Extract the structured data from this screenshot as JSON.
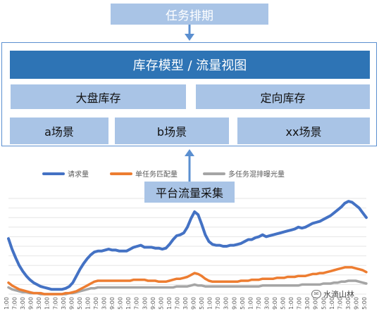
{
  "diagram": {
    "top_title": "任务排期",
    "model_title": "库存模型 / 流量视图",
    "pools": [
      "大盘库存",
      "定向库存"
    ],
    "scenes": [
      "a场景",
      "b场景",
      "xx场景"
    ],
    "collect_label": "平台流量采集"
  },
  "chart_data": {
    "type": "line",
    "title": "",
    "xlabel": "",
    "ylabel": "",
    "x": [
      0,
      1,
      2,
      3,
      4,
      5,
      6,
      7,
      8,
      9,
      10,
      11,
      12,
      13,
      14,
      15,
      16,
      17,
      18,
      19,
      20,
      21,
      22,
      23,
      24,
      25,
      26,
      27,
      28,
      29,
      30,
      31,
      32,
      33,
      34,
      35,
      36,
      37,
      38,
      39,
      40,
      41,
      42,
      43,
      44,
      45,
      46,
      47,
      48,
      49,
      50,
      51,
      52,
      53,
      54,
      55,
      56,
      57,
      58,
      59,
      60,
      61,
      62,
      63,
      64,
      65,
      66,
      67,
      68,
      69,
      70,
      71,
      72,
      73,
      74,
      75,
      76,
      77,
      78,
      79,
      80,
      81,
      82,
      83,
      84,
      85,
      86,
      87,
      88,
      89,
      90,
      91,
      92,
      93,
      94,
      95,
      96,
      97,
      98,
      99,
      100
    ],
    "x_tick_labels": [
      "1:00",
      "7:00",
      "3:00",
      "9:00",
      "3:00",
      "1:00",
      "7:00",
      "3:00",
      "9:00",
      "5:00",
      "1:00",
      "7:00",
      "3:00",
      "9:00",
      "5:00",
      "1:00",
      "7:00",
      "3:00",
      "9:00",
      "5:00",
      "1:00",
      "7:00",
      "3:00",
      "9:00",
      "5:00",
      "1:00",
      "7:00",
      "3:00",
      "9:00",
      "5:00",
      "1:00",
      "7:00",
      "3:00",
      "9:00",
      "5:00",
      "1:00",
      "7:00",
      "3:00",
      "9:00",
      "5:00",
      "1:00",
      "7:00",
      "3:00",
      "9:00",
      "5:00"
    ],
    "ylim": [
      0,
      100
    ],
    "grid": true,
    "legend_position": "top",
    "series": [
      {
        "name": "请求量",
        "color": "#4472c4",
        "values": [
          58,
          47,
          38,
          30,
          24,
          19,
          15,
          12,
          10,
          8,
          7,
          6,
          5,
          5,
          5,
          5,
          6,
          8,
          12,
          19,
          26,
          32,
          37,
          41,
          44,
          45,
          45,
          46,
          47,
          46,
          46,
          45,
          45,
          45,
          47,
          49,
          50,
          51,
          49,
          49,
          49,
          48,
          48,
          47,
          48,
          52,
          57,
          61,
          62,
          64,
          70,
          79,
          86,
          83,
          73,
          62,
          55,
          52,
          51,
          51,
          50,
          50,
          51,
          51,
          52,
          53,
          55,
          57,
          57,
          59,
          60,
          62,
          60,
          61,
          62,
          63,
          64,
          65,
          66,
          67,
          68,
          70,
          69,
          70,
          72,
          74,
          75,
          76,
          78,
          80,
          82,
          85,
          88,
          91,
          95,
          97,
          96,
          93,
          90,
          85,
          80
        ]
      },
      {
        "name": "单任务匹配量",
        "color": "#ed7d31",
        "values": [
          12,
          9,
          7,
          5,
          4,
          3,
          2,
          1,
          1,
          1,
          0,
          0,
          0,
          0,
          0,
          0,
          1,
          1,
          2,
          3,
          5,
          7,
          9,
          11,
          13,
          14,
          14,
          14,
          14,
          14,
          14,
          14,
          14,
          14,
          14,
          15,
          15,
          15,
          15,
          14,
          14,
          14,
          13,
          13,
          13,
          14,
          15,
          16,
          16,
          17,
          18,
          20,
          22,
          21,
          19,
          16,
          14,
          13,
          13,
          13,
          13,
          13,
          13,
          13,
          13,
          14,
          14,
          14,
          15,
          15,
          15,
          16,
          16,
          16,
          16,
          17,
          17,
          17,
          18,
          18,
          18,
          19,
          19,
          19,
          20,
          21,
          21,
          22,
          22,
          23,
          24,
          25,
          26,
          27,
          28,
          28,
          28,
          27,
          26,
          25,
          23
        ]
      },
      {
        "name": "多任务混排曝光量",
        "color": "#a5a5a5",
        "values": [
          7,
          5,
          4,
          3,
          2,
          2,
          1,
          1,
          1,
          0,
          0,
          0,
          0,
          0,
          0,
          0,
          0,
          1,
          1,
          2,
          3,
          4,
          5,
          6,
          6,
          7,
          7,
          7,
          7,
          7,
          7,
          7,
          7,
          7,
          7,
          7,
          7,
          7,
          7,
          7,
          7,
          7,
          7,
          7,
          7,
          7,
          7,
          8,
          8,
          8,
          8,
          9,
          10,
          9,
          9,
          8,
          8,
          8,
          8,
          8,
          8,
          8,
          8,
          8,
          8,
          8,
          8,
          8,
          8,
          8,
          8,
          9,
          9,
          9,
          9,
          9,
          9,
          9,
          9,
          9,
          9,
          9,
          10,
          10,
          10,
          10,
          10,
          10,
          11,
          11,
          11,
          12,
          12,
          13,
          13,
          14,
          14,
          14,
          13,
          12,
          11
        ]
      }
    ]
  },
  "watermark": {
    "icon": "wechat-icon",
    "text": "水滴山林"
  }
}
